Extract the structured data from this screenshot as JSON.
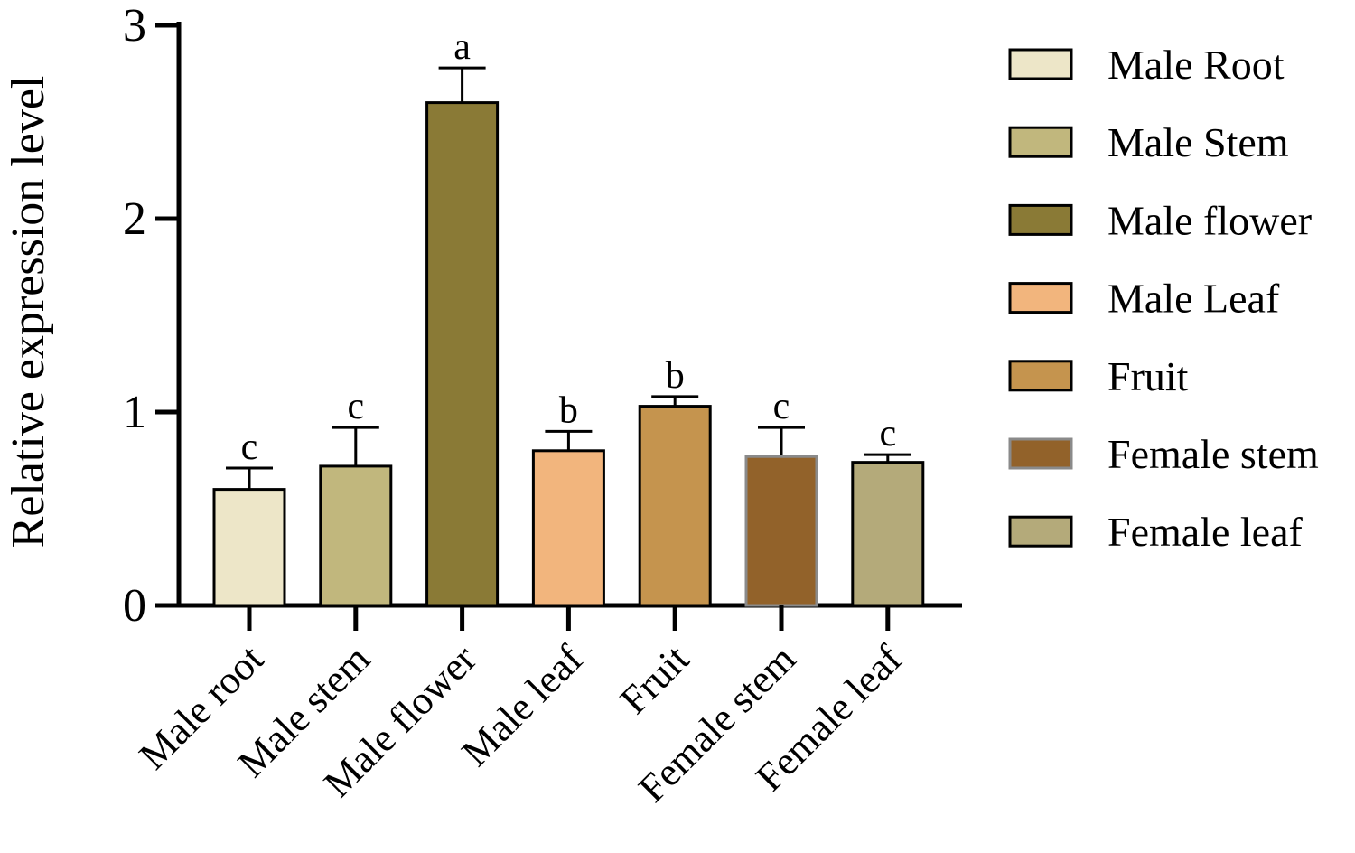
{
  "chart_data": {
    "type": "bar",
    "title": "",
    "xlabel": "",
    "ylabel": "Relative expression level",
    "ylim": [
      0,
      3
    ],
    "yticks": [
      "0",
      "1",
      "2",
      "3"
    ],
    "grid": false,
    "legend_position": "right",
    "categories": [
      "Male root",
      "Male stem",
      "Male flower",
      "Male leaf",
      "Fruit",
      "Female stem",
      "Female leaf"
    ],
    "values": [
      0.6,
      0.72,
      2.6,
      0.8,
      1.03,
      0.77,
      0.74
    ],
    "errors": [
      0.11,
      0.2,
      0.18,
      0.1,
      0.05,
      0.15,
      0.04
    ],
    "significance": [
      "c",
      "c",
      "a",
      "b",
      "b",
      "c",
      "c"
    ],
    "colors": [
      "#ede6c8",
      "#c1b77d",
      "#8a7a36",
      "#f2b57d",
      "#c5944e",
      "#92622a",
      "#b4aa7a"
    ],
    "legend": [
      "Male Root",
      "Male Stem",
      "Male flower",
      "Male Leaf",
      "Fruit",
      "Female stem",
      "Female leaf"
    ]
  }
}
